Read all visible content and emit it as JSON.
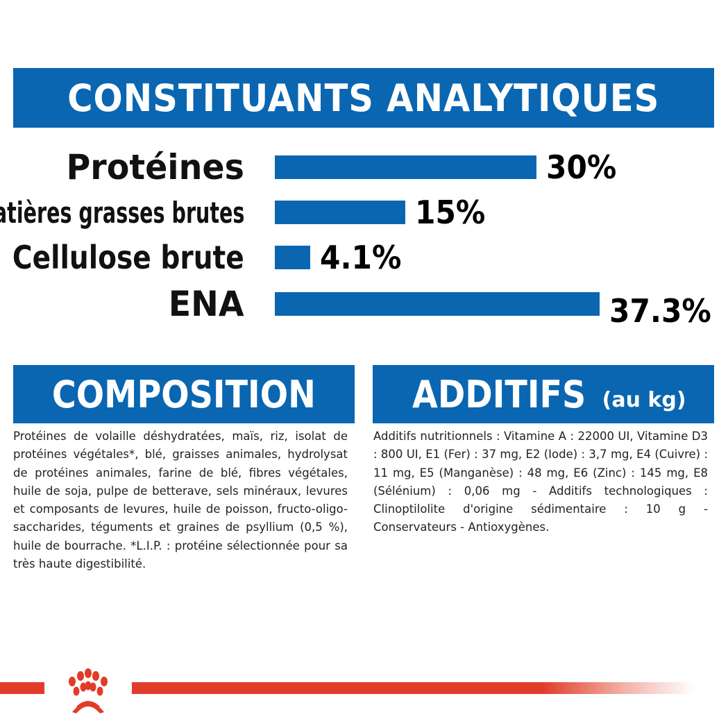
{
  "header": {
    "title": "CONSTITUANTS ANALYTIQUES"
  },
  "analytics": {
    "rows": [
      {
        "label": "Protéines",
        "value": 30,
        "value_label": "30%"
      },
      {
        "label": "Matières grasses brutes",
        "value": 15,
        "value_label": "15%"
      },
      {
        "label": "Cellulose brute",
        "value": 4.1,
        "value_label": "4.1%"
      },
      {
        "label": "ENA",
        "value": 37.3,
        "value_label": "37.3%"
      }
    ],
    "bar_color": "#0a66b0"
  },
  "composition": {
    "title": "COMPOSITION",
    "text": "Protéines de volaille déshydratées, maïs, riz, isolat de protéines végétales*, blé, graisses animales, hydrolysat de protéines animales, farine de blé, fibres végétales, huile de soja, pulpe de betterave, sels minéraux, levures et composants de levures, huile de poisson, fructo-oligo-saccharides, téguments et graines de psyllium (0,5 %), huile de bourrache. *L.I.P. : protéine sélectionnée pour sa très haute digestibilité."
  },
  "additifs": {
    "title": "ADDITIFS",
    "subtitle": "(au kg)",
    "text": "Additifs nutritionnels : Vitamine A : 22000 UI, Vitamine D3 : 800 UI, E1 (Fer) : 37 mg, E2 (Iode) : 3,7 mg, E4 (Cuivre) : 11 mg, E5 (Manganèse) : 48 mg, E6 (Zinc) : 145 mg, E8 (Sélénium) : 0,06 mg - Additifs technologiques : Clinoptilolite d'origine sédimentaire : 10 g - Conservateurs - Antioxygènes."
  },
  "brand": {
    "logo_icon": "royal-canin-crown-icon",
    "accent": "#e03c28",
    "primary": "#0a66b0"
  }
}
